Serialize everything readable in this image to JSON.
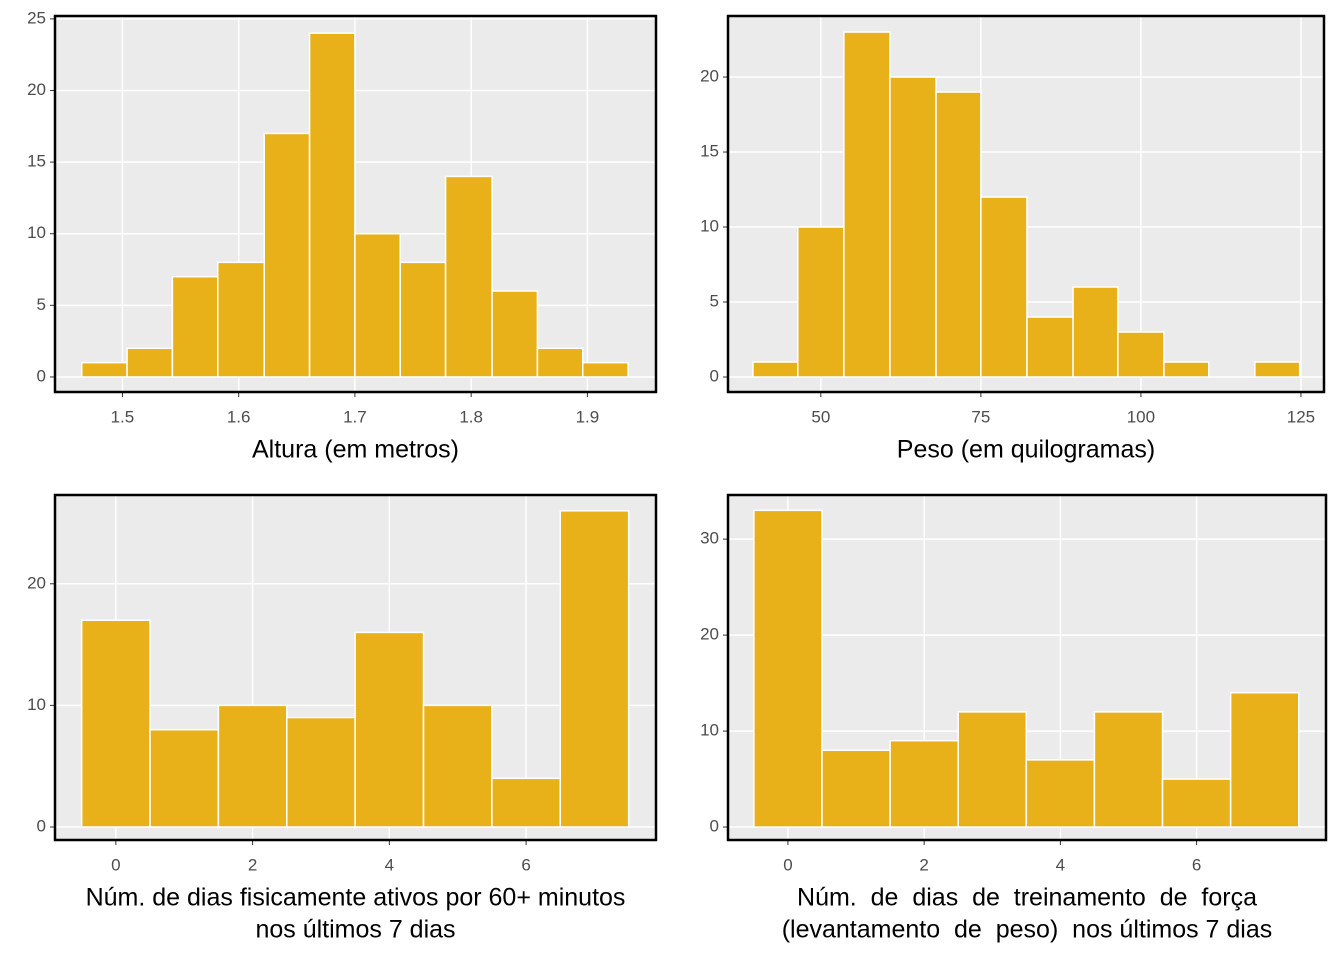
{
  "chart_data": [
    {
      "type": "histogram",
      "xlabel": [
        "Altura (em metros)"
      ],
      "bins": [
        1.465,
        1.504,
        1.543,
        1.582,
        1.622,
        1.661,
        1.7,
        1.739,
        1.778,
        1.818,
        1.857,
        1.896,
        1.935
      ],
      "values": [
        1,
        2,
        7,
        8,
        17,
        24,
        10,
        8,
        14,
        6,
        2,
        1
      ],
      "color": "#e8b11a",
      "xlim": [
        1.442,
        1.959
      ],
      "ylim": [
        -1.05,
        25.2
      ],
      "xticks": [
        1.5,
        1.6,
        1.7,
        1.8,
        1.9
      ],
      "yticks": [
        0,
        5,
        10,
        15,
        20,
        25
      ],
      "grid": true
    },
    {
      "type": "histogram",
      "xlabel": [
        "Peso (em quilogramas)"
      ],
      "bins": [
        39.4,
        46.4,
        53.6,
        60.8,
        68.0,
        75.0,
        82.2,
        89.4,
        96.4,
        103.6,
        110.6,
        117.8,
        124.8
      ],
      "values": [
        1,
        10,
        23,
        20,
        19,
        12,
        4,
        6,
        3,
        1,
        0,
        1
      ],
      "color": "#e8b11a",
      "xlim": [
        35.5,
        128.6
      ],
      "ylim": [
        -1.0,
        24.07
      ],
      "xticks": [
        50,
        75,
        100,
        125
      ],
      "yticks": [
        0,
        5,
        10,
        15,
        20
      ],
      "grid": true
    },
    {
      "type": "histogram",
      "xlabel": [
        "Núm. de dias fisicamente ativos por 60+ minutos",
        "nos últimos 7 dias"
      ],
      "bins": [
        -0.5,
        0.5,
        1.5,
        2.5,
        3.5,
        4.5,
        5.5,
        6.5,
        7.5
      ],
      "values": [
        17,
        8,
        10,
        9,
        16,
        10,
        4,
        26
      ],
      "color": "#e8b11a",
      "xlim": [
        -0.89,
        7.9
      ],
      "ylim": [
        -1.07,
        27.3
      ],
      "xticks": [
        0,
        2,
        4,
        6
      ],
      "yticks": [
        0,
        10,
        20
      ],
      "grid": true
    },
    {
      "type": "histogram",
      "xlabel": [
        "Núm.  de  dias  de  treinamento  de  força",
        "(levantamento  de  peso)  nos últimos 7 dias"
      ],
      "bins": [
        -0.5,
        0.5,
        1.5,
        2.5,
        3.5,
        4.5,
        5.5,
        6.5,
        7.5
      ],
      "values": [
        33,
        8,
        9,
        12,
        7,
        12,
        5,
        14
      ],
      "color": "#e8b11a",
      "xlim": [
        -0.88,
        7.9
      ],
      "ylim": [
        -1.35,
        34.6
      ],
      "xticks": [
        0,
        2,
        4,
        6
      ],
      "yticks": [
        0,
        10,
        20,
        30
      ],
      "grid": true
    }
  ]
}
